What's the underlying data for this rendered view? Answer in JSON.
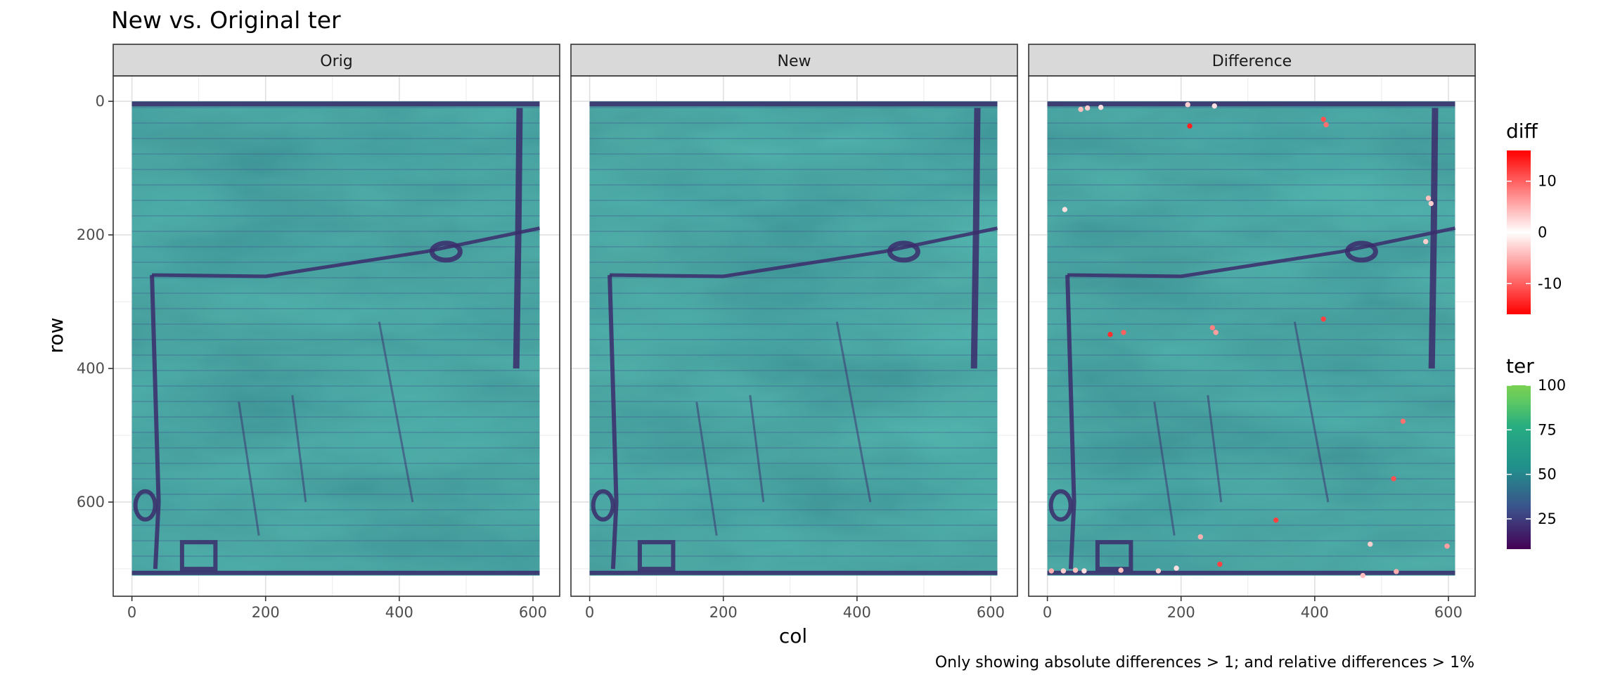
{
  "chart_data": {
    "type": "heatmap",
    "title": "New vs. Original ter",
    "caption": "Only showing absolute differences > 1; and relative differences > 1%",
    "xlabel": "col",
    "ylabel": "row",
    "x_ticks": [
      "0",
      "200",
      "400",
      "600"
    ],
    "y_ticks": [
      "0",
      "200",
      "400",
      "600"
    ],
    "x_tick_values": [
      0,
      200,
      400,
      600
    ],
    "y_tick_values": [
      0,
      200,
      400,
      600
    ],
    "xlim": [
      -28,
      640
    ],
    "ylim": [
      741,
      -38
    ],
    "raster_extent": {
      "cols": 610,
      "rows": 710
    },
    "facets": [
      "Orig",
      "New",
      "Difference"
    ],
    "legends": [
      {
        "title": "diff",
        "type": "diverging",
        "colors": [
          "#FF0000",
          "#FFFFFF",
          "#FF0000"
        ],
        "range": [
          -16,
          16
        ],
        "ticks": [
          "10",
          "0",
          "-10"
        ],
        "tick_values": [
          10,
          0,
          -10
        ]
      },
      {
        "title": "ter",
        "type": "viridis",
        "colors": [
          "#440154",
          "#3B528B",
          "#21908C",
          "#5DC863",
          "#7AD151"
        ],
        "range": [
          8,
          100
        ],
        "ticks": [
          "100",
          "75",
          "50",
          "25"
        ],
        "tick_values": [
          100,
          75,
          50,
          25
        ]
      }
    ],
    "diff_points": [
      {
        "col": 50,
        "row": 12,
        "v": 4
      },
      {
        "col": 60,
        "row": 10,
        "v": -3
      },
      {
        "col": 80,
        "row": 9,
        "v": 2
      },
      {
        "col": 210,
        "row": 5,
        "v": 3
      },
      {
        "col": 250,
        "row": 7,
        "v": -2
      },
      {
        "col": 213,
        "row": 37,
        "v": 14
      },
      {
        "col": 413,
        "row": 27,
        "v": 11
      },
      {
        "col": 417,
        "row": 35,
        "v": 9
      },
      {
        "col": 570,
        "row": 145,
        "v": -4
      },
      {
        "col": 574,
        "row": 153,
        "v": 3
      },
      {
        "col": 26,
        "row": 162,
        "v": 2
      },
      {
        "col": 566,
        "row": 210,
        "v": -3
      },
      {
        "col": 413,
        "row": 326,
        "v": 12
      },
      {
        "col": 247,
        "row": 339,
        "v": 8
      },
      {
        "col": 252,
        "row": 346,
        "v": -6
      },
      {
        "col": 94,
        "row": 349,
        "v": 13
      },
      {
        "col": 114,
        "row": 346,
        "v": 10
      },
      {
        "col": 532,
        "row": 479,
        "v": 9
      },
      {
        "col": 518,
        "row": 565,
        "v": 11
      },
      {
        "col": 342,
        "row": 627,
        "v": 12
      },
      {
        "col": 229,
        "row": 652,
        "v": -5
      },
      {
        "col": 483,
        "row": 663,
        "v": 3
      },
      {
        "col": 598,
        "row": 666,
        "v": 6
      },
      {
        "col": 258,
        "row": 693,
        "v": 12
      },
      {
        "col": 6,
        "row": 703,
        "v": 5
      },
      {
        "col": 24,
        "row": 703,
        "v": 3
      },
      {
        "col": 42,
        "row": 702,
        "v": -4
      },
      {
        "col": 55,
        "row": 703,
        "v": 2
      },
      {
        "col": 110,
        "row": 702,
        "v": 4
      },
      {
        "col": 166,
        "row": 703,
        "v": 3
      },
      {
        "col": 193,
        "row": 699,
        "v": 2
      },
      {
        "col": 522,
        "row": 704,
        "v": 5
      },
      {
        "col": 472,
        "row": 710,
        "v": 4
      }
    ]
  }
}
